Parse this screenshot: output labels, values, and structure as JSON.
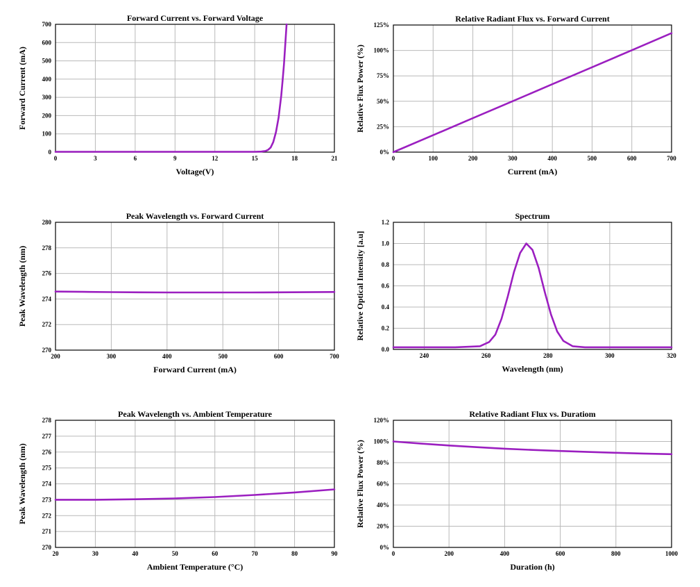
{
  "line_color": "#9b1fc0",
  "grid_color": "#b9b9b9",
  "chart_data": [
    {
      "type": "line",
      "title": "Forward Current vs. Forward Voltage",
      "xlabel": "Voltage(V)",
      "ylabel": "Forward Current (mA)",
      "xlim": [
        0,
        21
      ],
      "ylim": [
        0,
        700
      ],
      "xticks": [
        0,
        3,
        6,
        9,
        12,
        15,
        18,
        21
      ],
      "yticks": [
        0,
        100,
        200,
        300,
        400,
        500,
        600,
        700
      ],
      "xtick_labels": [
        "0",
        "3",
        "6",
        "9",
        "12",
        "15",
        "18",
        "21"
      ],
      "ytick_labels": [
        "0",
        "100",
        "200",
        "300",
        "400",
        "500",
        "600",
        "700"
      ],
      "grid": true,
      "series": [
        {
          "x": [
            0,
            15.0,
            15.5,
            15.8,
            16.0,
            16.2,
            16.4,
            16.6,
            16.8,
            17.0,
            17.1,
            17.2,
            17.3,
            17.4
          ],
          "y": [
            2,
            2,
            3,
            6,
            12,
            25,
            55,
            110,
            190,
            310,
            390,
            480,
            590,
            700
          ]
        }
      ]
    },
    {
      "type": "line",
      "title": "Relative Radiant Flux vs. Forward Current",
      "xlabel": "Current (mA)",
      "ylabel": "Relative Flux Power (%)",
      "xlim": [
        0,
        700
      ],
      "ylim": [
        0,
        125
      ],
      "xticks": [
        0,
        100,
        200,
        300,
        400,
        500,
        600,
        700
      ],
      "yticks": [
        0,
        25,
        50,
        75,
        100,
        125
      ],
      "xtick_labels": [
        "0",
        "100",
        "200",
        "300",
        "400",
        "500",
        "600",
        "700"
      ],
      "ytick_labels": [
        "0%",
        "25%",
        "50%",
        "75%",
        "100%",
        "125%"
      ],
      "grid": true,
      "series": [
        {
          "x": [
            0,
            100,
            200,
            300,
            400,
            500,
            600,
            700
          ],
          "y": [
            0,
            16.7,
            33.4,
            50.1,
            66.8,
            83.5,
            100.2,
            117
          ]
        }
      ]
    },
    {
      "type": "line",
      "title": "Peak Wavelength vs. Forward Current",
      "xlabel": "Forward Current (mA)",
      "ylabel": "Peak Wavelength (nm)",
      "xlim": [
        200,
        700
      ],
      "ylim": [
        270,
        280
      ],
      "xticks": [
        200,
        300,
        400,
        500,
        600,
        700
      ],
      "yticks": [
        270,
        272,
        274,
        276,
        278,
        280
      ],
      "xtick_labels": [
        "200",
        "300",
        "400",
        "500",
        "600",
        "700"
      ],
      "ytick_labels": [
        "270",
        "272",
        "274",
        "276",
        "278",
        "280"
      ],
      "grid": true,
      "series": [
        {
          "x": [
            200,
            250,
            300,
            350,
            400,
            450,
            500,
            550,
            600,
            650,
            700
          ],
          "y": [
            274.58,
            274.56,
            274.54,
            274.52,
            274.51,
            274.51,
            274.51,
            274.51,
            274.52,
            274.53,
            274.55
          ]
        }
      ]
    },
    {
      "type": "line",
      "title": "Spectrum",
      "xlabel": "Wavelength (nm)",
      "ylabel": "Relative Optical Intensity [a.u]",
      "xlim": [
        230,
        320
      ],
      "ylim": [
        0,
        1.2
      ],
      "xticks": [
        240,
        260,
        280,
        300,
        320
      ],
      "yticks": [
        0,
        0.2,
        0.4,
        0.6,
        0.8,
        1.0,
        1.2
      ],
      "xtick_labels": [
        "240",
        "260",
        "280",
        "300",
        "320"
      ],
      "ytick_labels": [
        "0.0",
        "0.2",
        "0.4",
        "0.6",
        "0.8",
        "1.0",
        "1.2"
      ],
      "grid": true,
      "series": [
        {
          "x": [
            230,
            240,
            250,
            258,
            261,
            263,
            265,
            267,
            269,
            271,
            273,
            275,
            277,
            279,
            281,
            283,
            285,
            288,
            292,
            300,
            310,
            320
          ],
          "y": [
            0.02,
            0.02,
            0.02,
            0.03,
            0.07,
            0.14,
            0.29,
            0.5,
            0.73,
            0.91,
            1.0,
            0.94,
            0.77,
            0.54,
            0.33,
            0.17,
            0.08,
            0.03,
            0.02,
            0.02,
            0.02,
            0.02
          ]
        }
      ]
    },
    {
      "type": "line",
      "title": "Peak Wavelength vs. Ambient Temperature",
      "xlabel": "Ambient Temperature (°C)",
      "ylabel": "Peak Wavelength (nm)",
      "xlim": [
        20,
        90
      ],
      "ylim": [
        270,
        278
      ],
      "xticks": [
        20,
        30,
        40,
        50,
        60,
        70,
        80,
        90
      ],
      "yticks": [
        270,
        271,
        272,
        273,
        274,
        275,
        276,
        277,
        278
      ],
      "xtick_labels": [
        "20",
        "30",
        "40",
        "50",
        "60",
        "70",
        "80",
        "90"
      ],
      "ytick_labels": [
        "270",
        "271",
        "272",
        "273",
        "274",
        "275",
        "276",
        "277",
        "278"
      ],
      "grid": true,
      "series": [
        {
          "x": [
            20,
            30,
            40,
            50,
            60,
            70,
            80,
            90
          ],
          "y": [
            273.0,
            273.0,
            273.03,
            273.08,
            273.17,
            273.3,
            273.46,
            273.65
          ]
        }
      ]
    },
    {
      "type": "line",
      "title": "Relative Radiant Flux vs. Duratiom",
      "xlabel": "Duration (h)",
      "ylabel": "Relative Flux Power (%)",
      "xlim": [
        0,
        1000
      ],
      "ylim": [
        0,
        120
      ],
      "xticks": [
        0,
        200,
        400,
        600,
        800,
        1000
      ],
      "yticks": [
        0,
        20,
        40,
        60,
        80,
        100,
        120
      ],
      "xtick_labels": [
        "0",
        "200",
        "400",
        "600",
        "800",
        "1000"
      ],
      "ytick_labels": [
        "0%",
        "20%",
        "40%",
        "60%",
        "80%",
        "100%",
        "120%"
      ],
      "grid": true,
      "series": [
        {
          "x": [
            0,
            100,
            200,
            300,
            400,
            500,
            600,
            700,
            800,
            900,
            1000
          ],
          "y": [
            100,
            98,
            96.2,
            94.6,
            93.2,
            92,
            91,
            90.1,
            89.3,
            88.6,
            88
          ]
        }
      ]
    }
  ]
}
